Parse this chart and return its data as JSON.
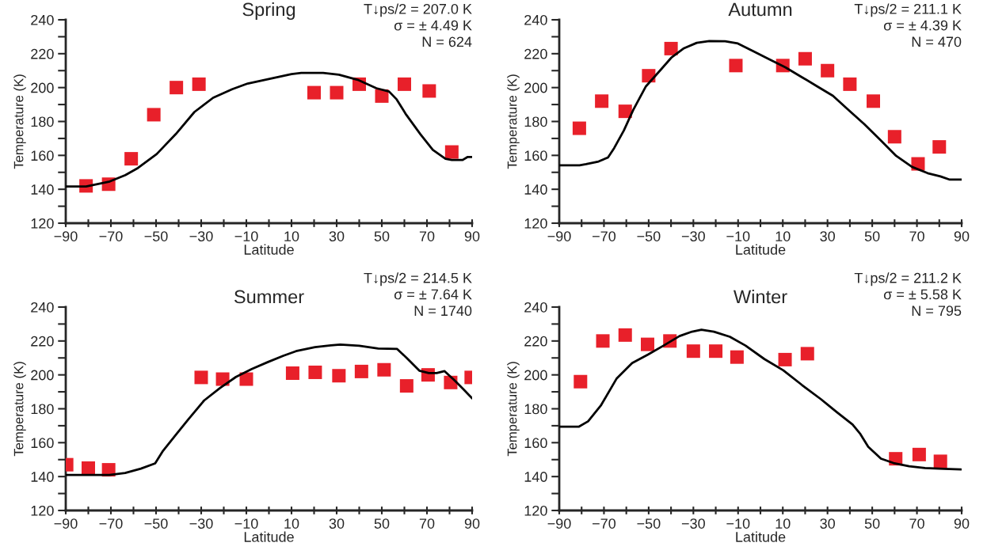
{
  "chart_data": [
    {
      "type": "scatter",
      "title": "Spring",
      "xlabel": "Latitude",
      "ylabel": "Temperature (K)",
      "annotations": [
        "T↓ps/2 = 207.0 K",
        "σ = ± 4.49 K",
        "N = 624"
      ],
      "xlim": [
        -90,
        90
      ],
      "ylim": [
        120,
        240
      ],
      "xticks": [
        {
          "value": -90,
          "label": "−90"
        },
        {
          "value": -80,
          "label": null
        },
        {
          "value": -70,
          "label": "−70"
        },
        {
          "value": -60,
          "label": null
        },
        {
          "value": -50,
          "label": "−50"
        },
        {
          "value": -40,
          "label": null
        },
        {
          "value": -30,
          "label": "−30"
        },
        {
          "value": -20,
          "label": null
        },
        {
          "value": -10,
          "label": "−10"
        },
        {
          "value": 0,
          "label": null
        },
        10,
        {
          "value": 20,
          "label": null
        },
        30,
        {
          "value": 40,
          "label": null
        },
        50,
        {
          "value": 60,
          "label": null
        },
        70,
        {
          "value": 80,
          "label": null
        },
        90
      ],
      "yticks": [
        120,
        {
          "value": 130,
          "label": null
        },
        140,
        {
          "value": 150,
          "label": null
        },
        160,
        {
          "value": 170,
          "label": null
        },
        180,
        {
          "value": 190,
          "label": null
        },
        200,
        {
          "value": 210,
          "label": null
        },
        220,
        {
          "value": 230,
          "label": null
        },
        240
      ],
      "grid": false,
      "legend": false,
      "series": [
        {
          "type": "line",
          "marker": "none",
          "color": "#000000",
          "x": [
            -90,
            -81,
            -70.5,
            -63.6,
            -58,
            -49.7,
            -41.3,
            -33,
            -24.7,
            -16.3,
            -9.4,
            0.3,
            10,
            14.3,
            24,
            31,
            39.3,
            47.6,
            53.2,
            56.6,
            60.8,
            67.1,
            72.6,
            78.2,
            81,
            85.8,
            87.9,
            90
          ],
          "values": [
            141.7,
            141.7,
            144.6,
            148.4,
            152.6,
            160.8,
            172.5,
            185.6,
            194,
            199,
            202.4,
            205.2,
            208,
            208.7,
            208.7,
            207.6,
            204.6,
            199.6,
            197.7,
            193,
            184,
            172.5,
            163.2,
            158,
            157.3,
            157.3,
            159,
            159
          ]
        },
        {
          "marker": "square",
          "color": "#e8202a",
          "x": [
            -81,
            -71,
            -61,
            -51,
            -41,
            -31,
            20,
            30,
            40,
            50,
            60,
            71,
            81
          ],
          "values": [
            142,
            143,
            158,
            184,
            200,
            202,
            197,
            197,
            202,
            195,
            202,
            198,
            162
          ]
        }
      ]
    },
    {
      "type": "scatter",
      "title": "Autumn",
      "xlabel": "Latitude",
      "ylabel": "Temperature (K)",
      "annotations": [
        "T↓ps/2 = 211.1 K",
        "σ = ± 4.39 K",
        "N = 470"
      ],
      "xlim": [
        -90,
        90
      ],
      "ylim": [
        120,
        240
      ],
      "xticks": [
        {
          "value": -90,
          "label": "−90"
        },
        {
          "value": -80,
          "label": null
        },
        {
          "value": -70,
          "label": "−70"
        },
        {
          "value": -60,
          "label": null
        },
        {
          "value": -50,
          "label": "−50"
        },
        {
          "value": -40,
          "label": null
        },
        {
          "value": -30,
          "label": "−30"
        },
        {
          "value": -20,
          "label": null
        },
        {
          "value": -10,
          "label": "−10"
        },
        {
          "value": 0,
          "label": null
        },
        10,
        {
          "value": 20,
          "label": null
        },
        30,
        {
          "value": 40,
          "label": null
        },
        50,
        {
          "value": 60,
          "label": null
        },
        70,
        {
          "value": 80,
          "label": null
        },
        90
      ],
      "yticks": [
        120,
        {
          "value": 130,
          "label": null
        },
        140,
        {
          "value": 150,
          "label": null
        },
        160,
        {
          "value": 170,
          "label": null
        },
        180,
        {
          "value": 190,
          "label": null
        },
        200,
        {
          "value": 210,
          "label": null
        },
        220,
        {
          "value": 230,
          "label": null
        },
        240
      ],
      "grid": false,
      "legend": false,
      "series": [
        {
          "type": "line",
          "marker": "none",
          "color": "#000000",
          "x": [
            -90,
            -80.9,
            -78,
            -72.4,
            -68.2,
            -65.4,
            -61.1,
            -56.9,
            -51.2,
            -45.5,
            -39.9,
            -34.2,
            -28.5,
            -22.9,
            -15.8,
            -10.1,
            -3,
            4,
            11.1,
            18.2,
            25.3,
            32.4,
            39.4,
            46.5,
            53.6,
            60.7,
            67.8,
            74.8,
            80.5,
            84.7,
            89.9
          ],
          "values": [
            154.1,
            154.1,
            154.8,
            156.4,
            158.8,
            164.4,
            174.7,
            186.8,
            200.8,
            209.2,
            217.6,
            223.2,
            226.4,
            227.5,
            227.3,
            226,
            221.3,
            216.7,
            212,
            206.4,
            200.8,
            195.2,
            186.8,
            178.4,
            169.1,
            159.7,
            153.2,
            149.5,
            147.6,
            145.7,
            145.7
          ]
        },
        {
          "marker": "square",
          "color": "#e8202a",
          "x": [
            -81,
            -71,
            -60.5,
            -50,
            -40,
            -11,
            10,
            20,
            30,
            40,
            50.5,
            60,
            70.5,
            80
          ],
          "values": [
            176,
            192,
            186,
            207,
            223,
            213,
            213,
            217,
            210,
            202,
            192,
            171,
            155,
            165
          ]
        }
      ]
    },
    {
      "type": "scatter",
      "title": "Summer",
      "xlabel": "Latitude",
      "ylabel": "Temperature (K)",
      "annotations": [
        "T↓ps/2 = 214.5 K",
        "σ = ± 7.64 K",
        "N = 1740"
      ],
      "xlim": [
        -90,
        90
      ],
      "ylim": [
        120,
        240
      ],
      "xticks": [
        {
          "value": -90,
          "label": "−90"
        },
        {
          "value": -80,
          "label": null
        },
        {
          "value": -70,
          "label": "−70"
        },
        {
          "value": -60,
          "label": null
        },
        {
          "value": -50,
          "label": "−50"
        },
        {
          "value": -40,
          "label": null
        },
        {
          "value": -30,
          "label": "−30"
        },
        {
          "value": -20,
          "label": null
        },
        {
          "value": -10,
          "label": "−10"
        },
        {
          "value": 0,
          "label": null
        },
        10,
        {
          "value": 20,
          "label": null
        },
        30,
        {
          "value": 40,
          "label": null
        },
        50,
        {
          "value": 60,
          "label": null
        },
        70,
        {
          "value": 80,
          "label": null
        },
        90
      ],
      "yticks": [
        120,
        {
          "value": 130,
          "label": null
        },
        140,
        {
          "value": 150,
          "label": null
        },
        160,
        {
          "value": 170,
          "label": null
        },
        180,
        {
          "value": 190,
          "label": null
        },
        200,
        {
          "value": 210,
          "label": null
        },
        220,
        {
          "value": 230,
          "label": null
        },
        240
      ],
      "grid": false,
      "legend": false,
      "series": [
        {
          "type": "line",
          "marker": "none",
          "color": "#000000",
          "x": [
            -90,
            -70.7,
            -63.7,
            -56.7,
            -50.4,
            -46.9,
            -41.3,
            -35.7,
            -28.7,
            -21.6,
            -14.6,
            -7.6,
            -0.6,
            6.4,
            12,
            20.4,
            27.4,
            31.6,
            40,
            48.4,
            56.8,
            61,
            66.6,
            70.8,
            74.3,
            77.8,
            82,
            86.2,
            90
          ],
          "values": [
            141,
            141,
            142.1,
            144.7,
            147.8,
            155.2,
            164.5,
            173.8,
            184.9,
            192.3,
            198.8,
            203.5,
            207.5,
            211.3,
            214,
            216.4,
            217.4,
            217.9,
            217.2,
            215.5,
            215.3,
            210,
            202.5,
            201.1,
            201.1,
            202.2,
            197,
            191.4,
            186.2
          ]
        },
        {
          "marker": "square",
          "color": "#e8202a",
          "x": [
            -89.6,
            -80,
            -71,
            -30,
            -20.5,
            -10,
            10.5,
            20.5,
            31,
            41,
            51,
            61,
            70.5,
            80.5,
            89.6
          ],
          "values": [
            147,
            145,
            144,
            198.5,
            197.5,
            197.5,
            201,
            201.5,
            199.5,
            202,
            203,
            193.5,
            200,
            195.5,
            198.5
          ]
        }
      ]
    },
    {
      "type": "scatter",
      "title": "Winter",
      "xlabel": "Latitude",
      "ylabel": "Temperature (K)",
      "annotations": [
        "T↓ps/2 = 211.2 K",
        "σ = ± 5.58 K",
        "N = 795"
      ],
      "xlim": [
        -90,
        90
      ],
      "ylim": [
        120,
        240
      ],
      "xticks": [
        {
          "value": -90,
          "label": "−90"
        },
        {
          "value": -80,
          "label": null
        },
        {
          "value": -70,
          "label": "−70"
        },
        {
          "value": -60,
          "label": null
        },
        {
          "value": -50,
          "label": "−50"
        },
        {
          "value": -40,
          "label": null
        },
        {
          "value": -30,
          "label": "−30"
        },
        {
          "value": -20,
          "label": null
        },
        {
          "value": -10,
          "label": "−10"
        },
        {
          "value": 0,
          "label": null
        },
        10,
        {
          "value": 20,
          "label": null
        },
        30,
        {
          "value": 40,
          "label": null
        },
        50,
        {
          "value": 60,
          "label": null
        },
        70,
        {
          "value": 80,
          "label": null
        },
        90
      ],
      "yticks": [
        120,
        {
          "value": 130,
          "label": null
        },
        140,
        {
          "value": 150,
          "label": null
        },
        160,
        {
          "value": 170,
          "label": null
        },
        180,
        {
          "value": 190,
          "label": null
        },
        200,
        {
          "value": 210,
          "label": null
        },
        220,
        {
          "value": 230,
          "label": null
        },
        240
      ],
      "grid": false,
      "legend": false,
      "series": [
        {
          "type": "line",
          "marker": "none",
          "color": "#000000",
          "x": [
            -90,
            -81.3,
            -77.1,
            -71.4,
            -64.4,
            -57.4,
            -50.3,
            -43.3,
            -36.2,
            -30.6,
            -26.4,
            -20.8,
            -13.7,
            -6.7,
            1.8,
            10.2,
            18.6,
            27.1,
            34.1,
            41.2,
            44.7,
            48.2,
            53.9,
            59.5,
            66.5,
            73.6,
            82,
            89.7
          ],
          "values": [
            169.4,
            169.4,
            172.6,
            181.9,
            197.7,
            207,
            212,
            217.3,
            222.9,
            225.5,
            226.6,
            225.5,
            222.5,
            217.3,
            209.3,
            202.7,
            194,
            185.6,
            178.1,
            170.7,
            165.1,
            157.6,
            150.6,
            148,
            146.1,
            145,
            144.6,
            144.2
          ]
        },
        {
          "marker": "square",
          "color": "#e8202a",
          "x": [
            -80.5,
            -70.5,
            -60.5,
            -50.5,
            -40.5,
            -30,
            -20,
            -10.5,
            11,
            21,
            60.5,
            71,
            80.5
          ],
          "values": [
            196,
            220,
            223.5,
            218,
            220,
            214,
            214,
            210.5,
            209,
            212.5,
            150.5,
            153,
            149
          ]
        }
      ]
    }
  ]
}
